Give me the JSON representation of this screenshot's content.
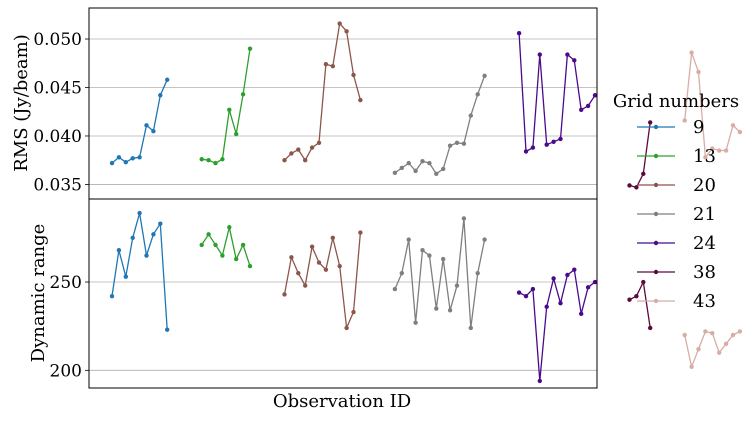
{
  "chart_data": {
    "type": "line",
    "xlabel": "Observation ID",
    "legend": {
      "title": "Grid numbers",
      "placement": "right"
    },
    "grid": "horizontal",
    "series": [
      {
        "name": "9",
        "color": "#1f77b4",
        "rms": [
          0.0372,
          0.0378,
          0.0373,
          0.0377,
          0.0378,
          0.0411,
          0.0405,
          0.0442,
          0.0458
        ],
        "dynamic_range": [
          242,
          268,
          253,
          275,
          289,
          265,
          277,
          283,
          223
        ]
      },
      {
        "name": "13",
        "color": "#2ca02c",
        "rms": [
          0.0376,
          0.0375,
          0.0372,
          0.0376,
          0.0427,
          0.0402,
          0.0443,
          0.049
        ],
        "dynamic_range": [
          271,
          277,
          271,
          265,
          281,
          263,
          271,
          259
        ]
      },
      {
        "name": "20",
        "color": "#8c564b",
        "rms": [
          0.0375,
          0.0382,
          0.0386,
          0.0375,
          0.0388,
          0.0393,
          0.0474,
          0.0472,
          0.0516,
          0.0508,
          0.0463,
          0.0437
        ],
        "dynamic_range": [
          243,
          264,
          255,
          248,
          270,
          261,
          257,
          275,
          259,
          224,
          233,
          278
        ]
      },
      {
        "name": "21",
        "color": "#7f7f7f",
        "rms": [
          0.0362,
          0.0367,
          0.0372,
          0.0364,
          0.0374,
          0.0372,
          0.0361,
          0.0366,
          0.039,
          0.0393,
          0.0392,
          0.0421,
          0.0443,
          0.0462
        ],
        "dynamic_range": [
          246,
          255,
          274,
          227,
          268,
          265,
          235,
          263,
          234,
          248,
          286,
          224,
          255,
          274
        ]
      },
      {
        "name": "24",
        "color": "#4b0a8c",
        "rms": [
          0.0506,
          0.0384,
          0.0388,
          0.0484,
          0.0391,
          0.0394,
          0.0397,
          0.0484,
          0.0478,
          0.0427,
          0.0431,
          0.0442
        ],
        "dynamic_range": [
          244,
          242,
          246,
          194,
          236,
          252,
          238,
          254,
          257,
          232,
          247,
          250
        ]
      },
      {
        "name": "38",
        "color": "#5c0a3c",
        "rms": [
          0.0349,
          0.0347,
          0.0361,
          0.0414
        ],
        "dynamic_range": [
          240,
          242,
          250,
          224
        ]
      },
      {
        "name": "43",
        "color": "#d7ada6",
        "rms": [
          0.0416,
          0.0486,
          0.0466,
          0.0378,
          0.0387,
          0.0385,
          0.0385,
          0.0411,
          0.0404
        ],
        "dynamic_range": [
          220,
          202,
          212,
          222,
          221,
          210,
          215,
          220,
          222
        ]
      }
    ],
    "panels": [
      {
        "metric": "rms",
        "ylabel": "RMS (Jy/beam)",
        "ylim": [
          0.0335,
          0.0532
        ],
        "ticks": [
          0.035,
          0.04,
          0.045,
          0.05
        ],
        "tick_labels": [
          "0.035",
          "0.040",
          "0.045",
          "0.050"
        ]
      },
      {
        "metric": "dynamic_range",
        "ylabel": "Dynamic range",
        "ylim": [
          190,
          297
        ],
        "ticks": [
          200,
          250
        ],
        "tick_labels": [
          "200",
          "250"
        ]
      }
    ]
  }
}
